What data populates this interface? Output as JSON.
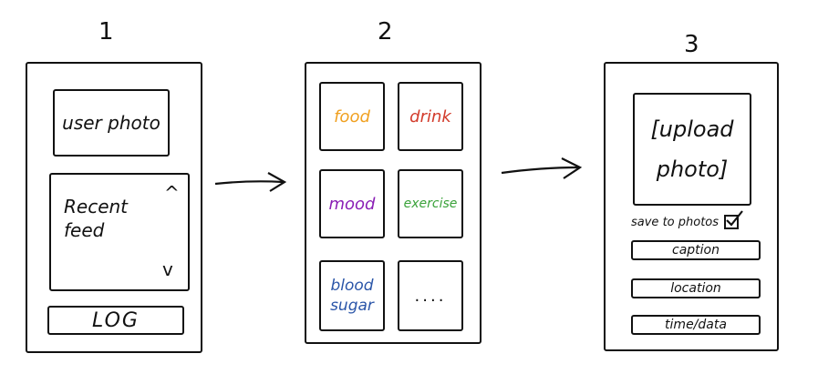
{
  "screens": [
    {
      "number": "1",
      "user_photo": "user photo",
      "recent_feed": "Recent feed",
      "scroll_up": "^",
      "scroll_down": "v",
      "log_button": "LOG"
    },
    {
      "number": "2",
      "tiles": [
        {
          "label": "food",
          "color": "#f0a020"
        },
        {
          "label": "drink",
          "color": "#d23a2a"
        },
        {
          "label": "mood",
          "color": "#8a1fb5"
        },
        {
          "label": "exercise",
          "color": "#3aa23a"
        },
        {
          "label": "blood sugar",
          "color": "#2a55a8"
        },
        {
          "label": "....",
          "color": "#111111"
        }
      ]
    },
    {
      "number": "3",
      "upload_photo": "[upload photo]",
      "save_to_photos": "save to photos",
      "save_checked": true,
      "fields": [
        "caption",
        "location",
        "time/data"
      ]
    }
  ]
}
